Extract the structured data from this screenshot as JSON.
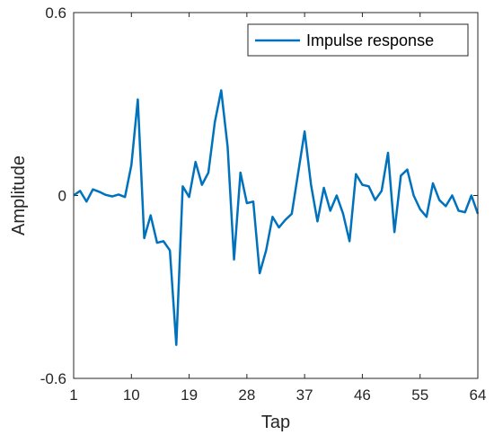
{
  "chart_data": {
    "type": "line",
    "xlabel": "Tap",
    "ylabel": "Amplitude",
    "xlim": [
      1,
      64
    ],
    "ylim": [
      -0.6,
      0.6
    ],
    "x_ticks": [
      1,
      10,
      19,
      28,
      37,
      46,
      55,
      64
    ],
    "y_ticks": [
      -0.6,
      0,
      0.6
    ],
    "x_tick_labels": [
      "1",
      "10",
      "19",
      "28",
      "37",
      "46",
      "55",
      "64"
    ],
    "y_tick_labels": [
      "-0.6",
      "0",
      "0.6"
    ],
    "grid": false,
    "legend": {
      "position": "top-right",
      "entries": [
        "Impulse response"
      ]
    },
    "series": [
      {
        "name": "Impulse response",
        "color": "#0072BD",
        "x": [
          1,
          2,
          3,
          4,
          5,
          6,
          7,
          8,
          9,
          10,
          11,
          12,
          13,
          14,
          15,
          16,
          17,
          18,
          19,
          20,
          21,
          22,
          23,
          24,
          25,
          26,
          27,
          28,
          29,
          30,
          31,
          32,
          33,
          34,
          35,
          36,
          37,
          38,
          39,
          40,
          41,
          42,
          43,
          44,
          45,
          46,
          47,
          48,
          49,
          50,
          51,
          52,
          53,
          54,
          55,
          56,
          57,
          58,
          59,
          60,
          61,
          62,
          63,
          64
        ],
        "y": [
          0.0,
          0.015,
          -0.02,
          0.02,
          0.012,
          0.002,
          -0.003,
          0.003,
          -0.005,
          0.1,
          0.315,
          -0.14,
          -0.065,
          -0.155,
          -0.15,
          -0.18,
          -0.49,
          0.03,
          -0.005,
          0.11,
          0.035,
          0.075,
          0.24,
          0.345,
          0.16,
          -0.21,
          0.075,
          -0.025,
          -0.02,
          -0.255,
          -0.18,
          -0.07,
          -0.105,
          -0.08,
          -0.06,
          0.075,
          0.21,
          0.035,
          -0.085,
          0.025,
          -0.05,
          0.0,
          -0.06,
          -0.15,
          0.07,
          0.035,
          0.03,
          -0.015,
          0.015,
          0.14,
          -0.12,
          0.065,
          0.085,
          0.0,
          -0.045,
          -0.07,
          0.04,
          -0.015,
          -0.035,
          0.0,
          -0.05,
          -0.055,
          0.0,
          -0.06
        ]
      }
    ]
  }
}
